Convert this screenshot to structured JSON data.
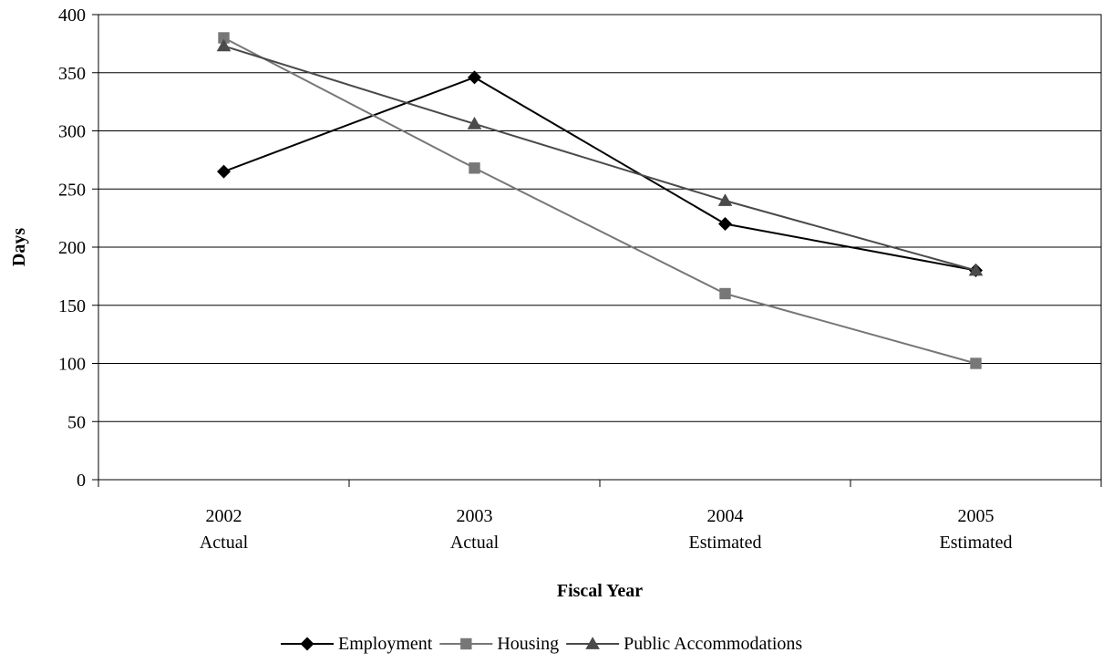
{
  "chart_data": {
    "type": "line",
    "title": "",
    "xlabel": "Fiscal Year",
    "ylabel": "Days",
    "categories": [
      [
        "2002",
        "Actual"
      ],
      [
        "2003",
        "Actual"
      ],
      [
        "2004",
        "Estimated"
      ],
      [
        "2005",
        "Estimated"
      ]
    ],
    "ylim": [
      0,
      400
    ],
    "yticks": [
      0,
      50,
      100,
      150,
      200,
      250,
      300,
      350,
      400
    ],
    "grid": true,
    "legend_position": "bottom",
    "series": [
      {
        "name": "Employment",
        "values": [
          265,
          346,
          220,
          180
        ],
        "color": "#000000",
        "marker": "diamond"
      },
      {
        "name": "Housing",
        "values": [
          380,
          268,
          160,
          100
        ],
        "color": "#777777",
        "marker": "square"
      },
      {
        "name": "Public Accommodations",
        "values": [
          373,
          306,
          240,
          180
        ],
        "color": "#4a4a4a",
        "marker": "triangle"
      }
    ]
  }
}
